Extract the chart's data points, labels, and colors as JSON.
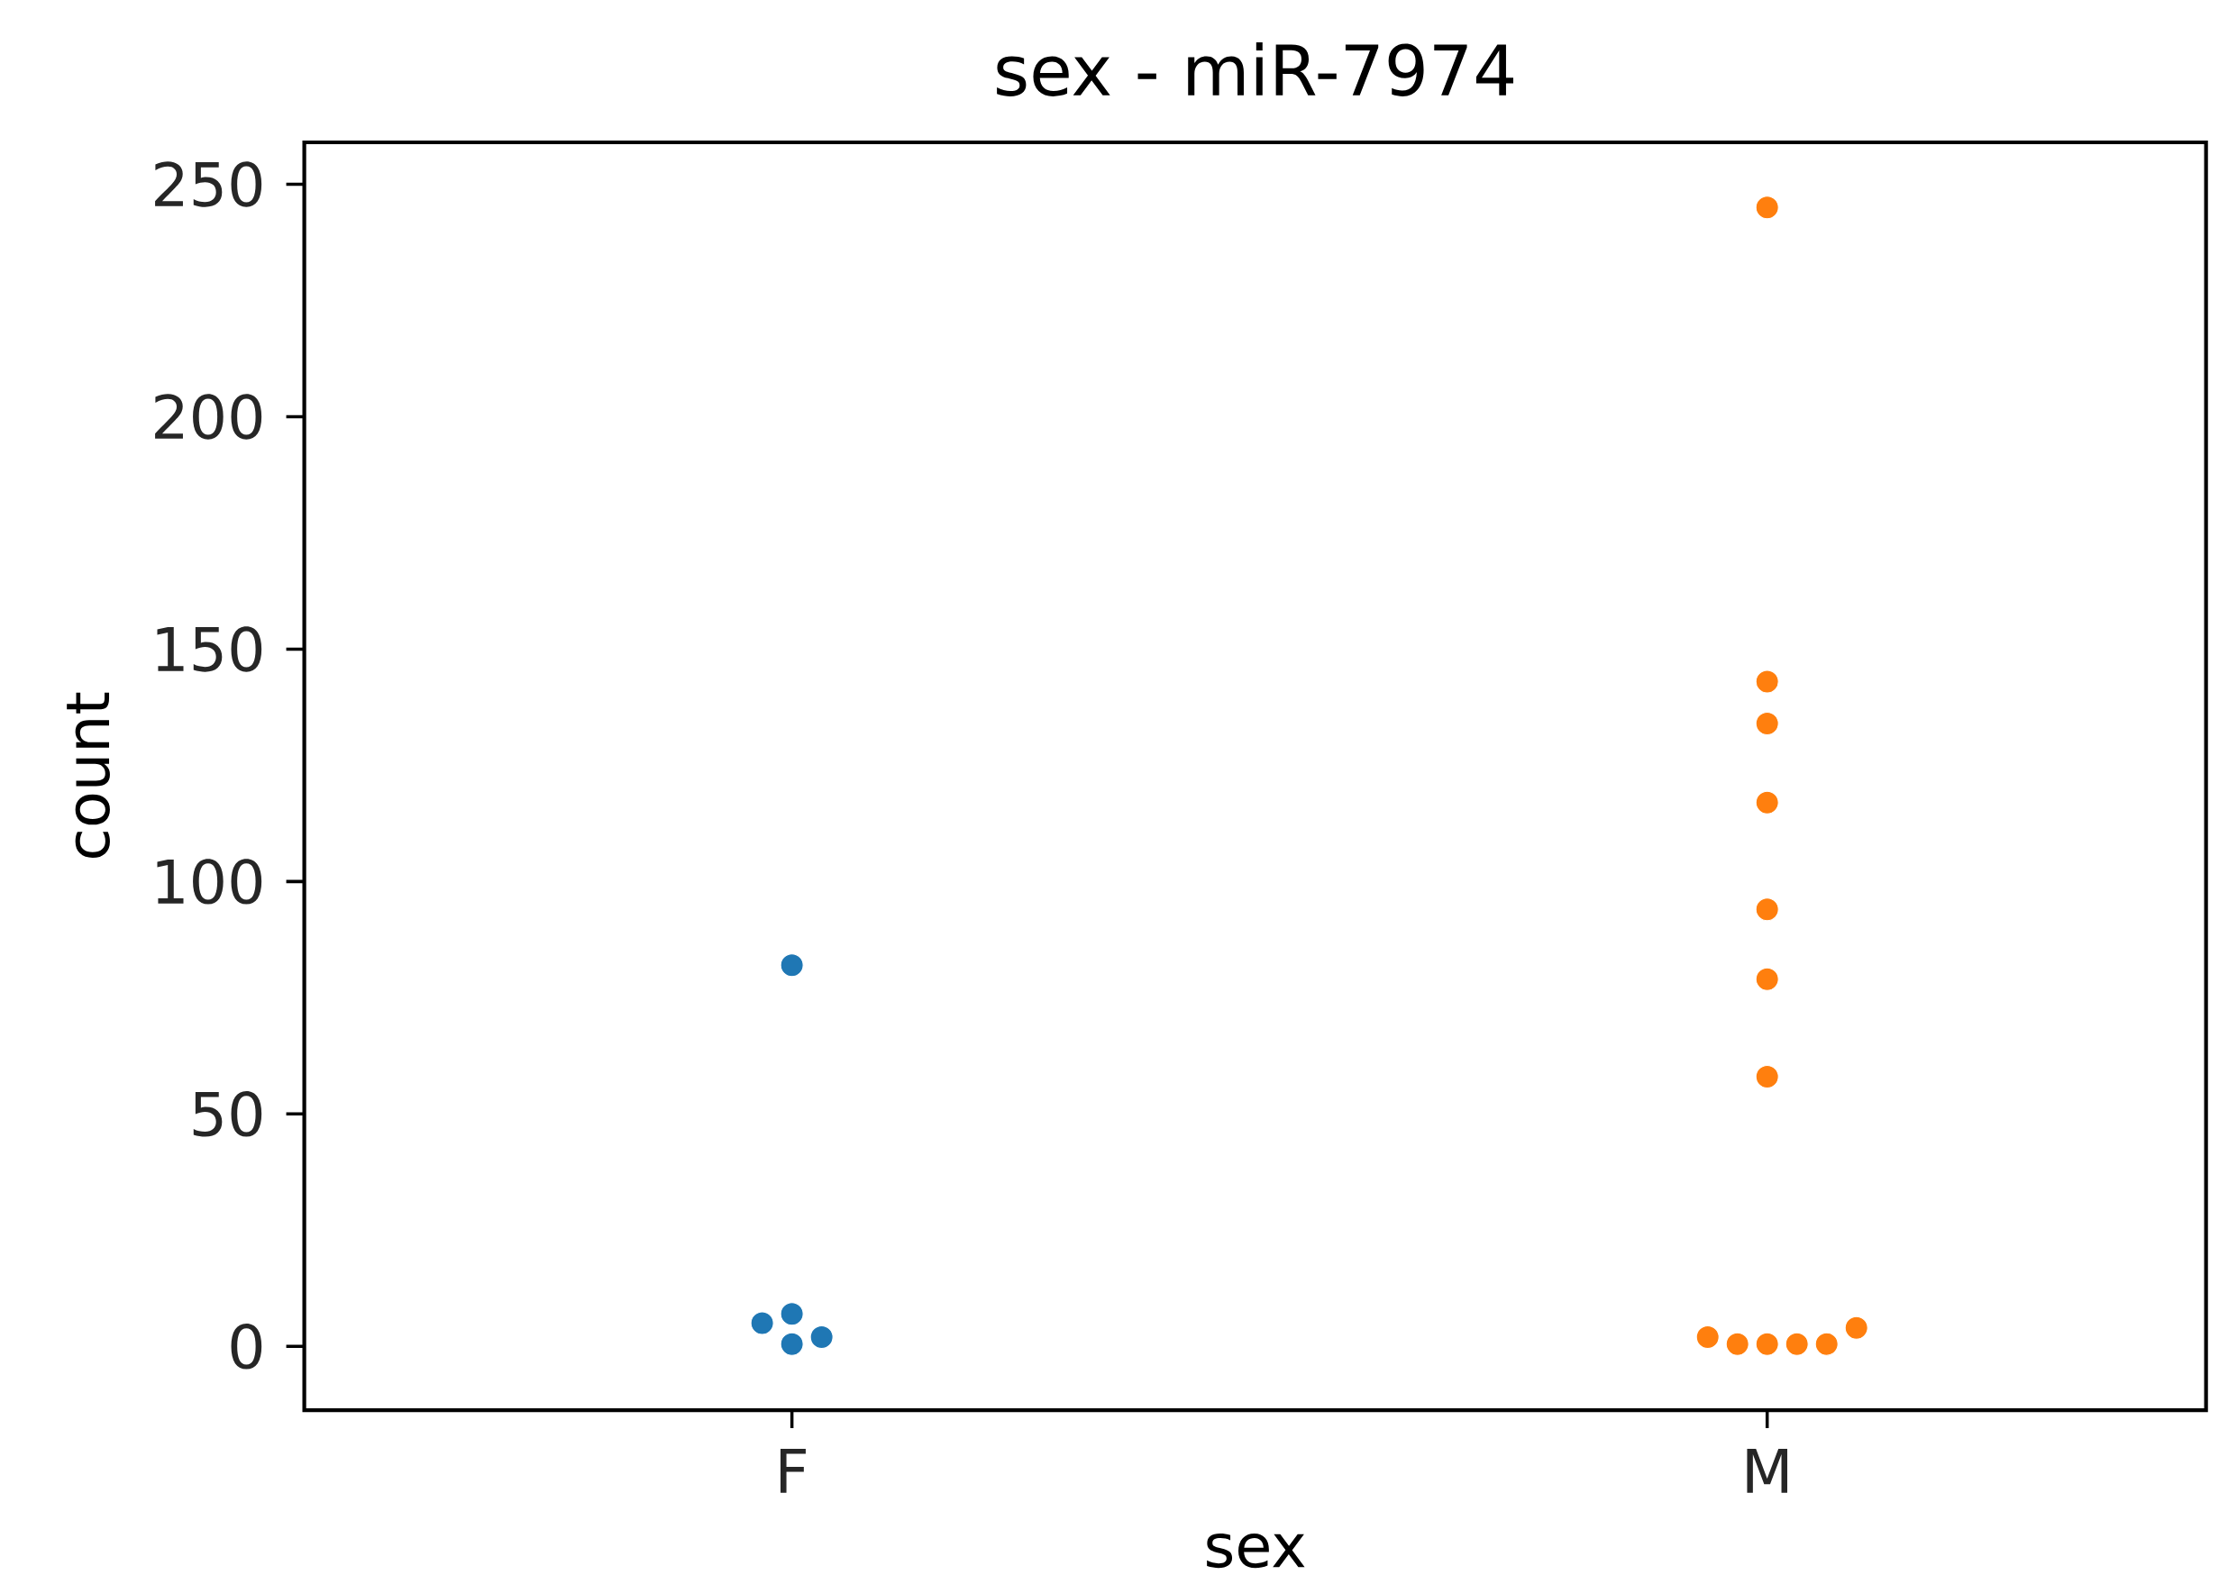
{
  "chart_data": {
    "type": "scatter",
    "title": "sex - miR-7974",
    "xlabel": "sex",
    "ylabel": "count",
    "categories": [
      "F",
      "M"
    ],
    "series": [
      {
        "color": "#1f77b4",
        "x": [
          "F",
          "F",
          "F",
          "F",
          "F"
        ],
        "values": [
          82,
          7,
          5,
          2,
          0.5
        ]
      },
      {
        "color": "#ff7f0e",
        "x": [
          "M",
          "M",
          "M",
          "M",
          "M",
          "M",
          "M",
          "M",
          "M",
          "M",
          "M",
          "M",
          "M"
        ],
        "values": [
          245,
          143,
          134,
          117,
          94,
          79,
          58,
          4,
          2,
          0.5,
          0.5,
          0.5,
          0.5
        ]
      }
    ],
    "ylim": [
      -13.7,
      259
    ],
    "yticks": [
      0,
      50,
      100,
      150,
      200,
      250
    ],
    "grid": false,
    "marker": "circle"
  }
}
